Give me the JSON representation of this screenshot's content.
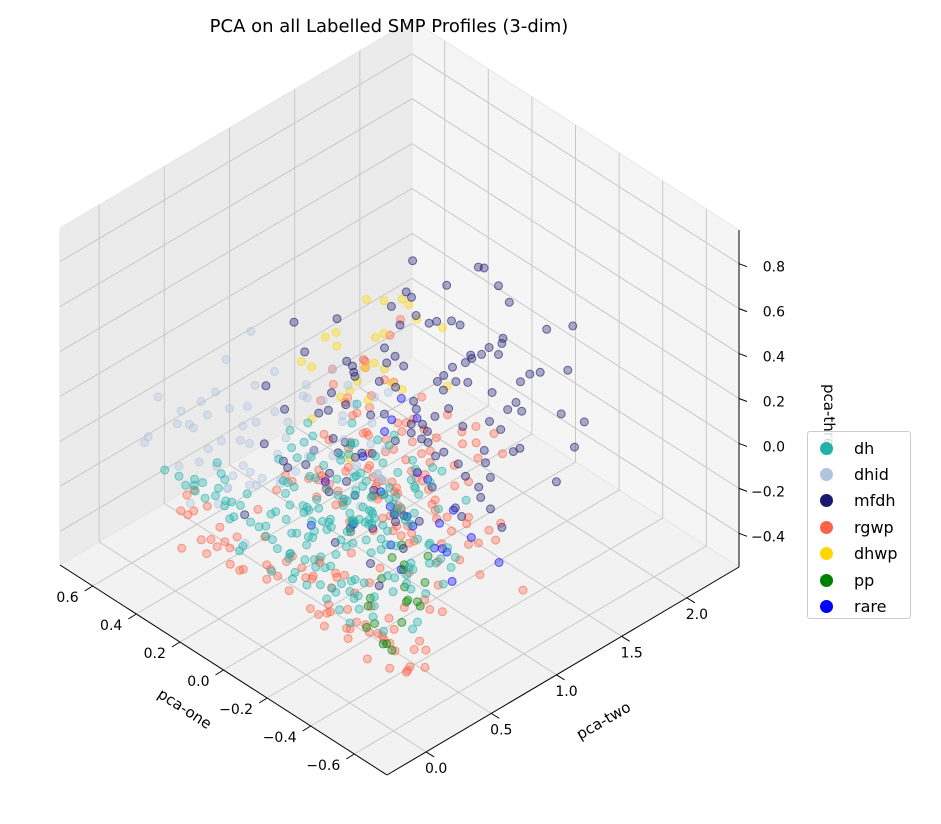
{
  "chart_data": {
    "type": "scatter",
    "projection": "3d",
    "title": "PCA on all Labelled SMP Profiles (3-dim)",
    "xlabel": "pca-one",
    "ylabel": "pca-two",
    "zlabel": "pca-three",
    "xlim": [
      -0.75,
      0.75
    ],
    "ylim": [
      -0.3,
      2.4
    ],
    "zlim": [
      -0.55,
      0.95
    ],
    "x_ticks": [
      "−0.6",
      "−0.4",
      "−0.2",
      "0.0",
      "0.2",
      "0.4",
      "0.6"
    ],
    "y_ticks": [
      "0.0",
      "0.5",
      "1.0",
      "1.5",
      "2.0"
    ],
    "z_ticks": [
      "−0.4",
      "−0.2",
      "0.0",
      "0.2",
      "0.4",
      "0.6",
      "0.8"
    ],
    "x_tick_values": [
      -0.6,
      -0.4,
      -0.2,
      0.0,
      0.2,
      0.4,
      0.6
    ],
    "y_tick_values": [
      0.0,
      0.5,
      1.0,
      1.5,
      2.0
    ],
    "z_tick_values": [
      -0.4,
      -0.2,
      0.0,
      0.2,
      0.4,
      0.6,
      0.8
    ],
    "grid": true,
    "legend_position": "right",
    "series": [
      {
        "name": "dh",
        "color": "#20b2aa",
        "clusters": [
          {
            "x": [
              -0.55,
              0.05
            ],
            "y": [
              0.0,
              0.7
            ],
            "z": [
              -0.25,
              0.35
            ],
            "n": 160
          },
          {
            "x": [
              -0.3,
              0.5
            ],
            "y": [
              0.0,
              0.25
            ],
            "z": [
              -0.2,
              0.0
            ],
            "n": 40
          }
        ]
      },
      {
        "name": "dhid",
        "color": "#b0c4de",
        "clusters": [
          {
            "x": [
              0.0,
              0.6
            ],
            "y": [
              0.0,
              1.2
            ],
            "z": [
              -0.2,
              0.2
            ],
            "n": 70
          }
        ]
      },
      {
        "name": "mfdh",
        "color": "#191970",
        "clusters": [
          {
            "x": [
              -0.3,
              0.45
            ],
            "y": [
              0.4,
              2.2
            ],
            "z": [
              -0.35,
              0.35
            ],
            "n": 120
          }
        ]
      },
      {
        "name": "rgwp",
        "color": "#ff6347",
        "clusters": [
          {
            "x": [
              -0.7,
              0.0
            ],
            "y": [
              -0.1,
              1.0
            ],
            "z": [
              -0.3,
              0.65
            ],
            "n": 150
          },
          {
            "x": [
              -0.7,
              0.4
            ],
            "y": [
              -0.1,
              0.15
            ],
            "z": [
              -0.3,
              -0.1
            ],
            "n": 50
          }
        ]
      },
      {
        "name": "dhwp",
        "color": "#ffd700",
        "clusters": [
          {
            "x": [
              -0.2,
              0.05
            ],
            "y": [
              0.3,
              1.2
            ],
            "z": [
              0.2,
              0.75
            ],
            "n": 25
          }
        ]
      },
      {
        "name": "pp",
        "color": "#008000",
        "clusters": [
          {
            "x": [
              -0.65,
              -0.45
            ],
            "y": [
              -0.1,
              0.3
            ],
            "z": [
              -0.15,
              0.2
            ],
            "n": 20
          }
        ]
      },
      {
        "name": "rare",
        "color": "#0000ff",
        "clusters": [
          {
            "x": [
              -0.7,
              -0.2
            ],
            "y": [
              -0.1,
              0.8
            ],
            "z": [
              0.0,
              0.55
            ],
            "n": 25
          }
        ]
      }
    ]
  }
}
